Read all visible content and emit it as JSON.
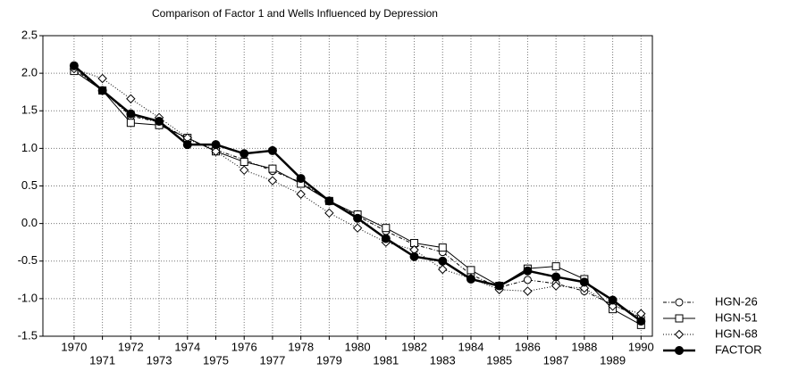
{
  "chart_data": {
    "type": "line",
    "title": "Comparison of Factor 1 and Wells Influenced by Depression",
    "x": [
      1970,
      1971,
      1972,
      1973,
      1974,
      1975,
      1976,
      1977,
      1978,
      1979,
      1980,
      1981,
      1982,
      1983,
      1984,
      1985,
      1986,
      1987,
      1988,
      1989,
      1990
    ],
    "series": [
      {
        "name": "HGN-26",
        "color": "#000000",
        "marker": "circle",
        "line": "dashdot",
        "values": [
          2.06,
          1.77,
          1.43,
          1.35,
          1.12,
          0.98,
          0.85,
          0.7,
          0.55,
          0.3,
          0.1,
          -0.1,
          -0.28,
          -0.38,
          -0.68,
          -0.85,
          -0.75,
          -0.8,
          -0.9,
          -1.08,
          -1.25
        ]
      },
      {
        "name": "HGN-51",
        "color": "#000000",
        "marker": "square",
        "line": "solid",
        "values": [
          2.03,
          1.77,
          1.34,
          1.31,
          1.14,
          0.96,
          0.82,
          0.73,
          0.53,
          0.3,
          0.12,
          -0.06,
          -0.26,
          -0.32,
          -0.62,
          -0.83,
          -0.6,
          -0.57,
          -0.74,
          -1.14,
          -1.35
        ]
      },
      {
        "name": "HGN-68",
        "color": "#000000",
        "marker": "diamond",
        "line": "dotted",
        "values": [
          2.06,
          1.93,
          1.66,
          1.41,
          1.14,
          0.96,
          0.71,
          0.57,
          0.39,
          0.14,
          -0.06,
          -0.25,
          -0.35,
          -0.61,
          -0.73,
          -0.88,
          -0.9,
          -0.83,
          -0.86,
          -1.1,
          -1.2
        ]
      },
      {
        "name": "FACTOR",
        "color": "#000000",
        "marker": "filled-circle",
        "line": "bold",
        "values": [
          2.1,
          1.77,
          1.46,
          1.36,
          1.05,
          1.05,
          0.93,
          0.97,
          0.6,
          0.3,
          0.07,
          -0.2,
          -0.44,
          -0.5,
          -0.74,
          -0.83,
          -0.63,
          -0.71,
          -0.78,
          -1.02,
          -1.3
        ]
      }
    ],
    "xlim": [
      1968.9,
      1990.4
    ],
    "xticks": [
      1970,
      1971,
      1972,
      1973,
      1974,
      1975,
      1976,
      1977,
      1978,
      1979,
      1980,
      1981,
      1982,
      1983,
      1984,
      1985,
      1986,
      1987,
      1988,
      1989,
      1990
    ],
    "ylim": [
      -1.5,
      2.5
    ],
    "yticks": [
      {
        "value": 2.5,
        "label": "2.5"
      },
      {
        "value": 2,
        "label": "2.0"
      },
      {
        "value": 1.5,
        "label": "1.5"
      },
      {
        "value": 1,
        "label": "1.0"
      },
      {
        "value": 0.5,
        "label": "0.5"
      },
      {
        "value": 0,
        "label": "0.0"
      },
      {
        "value": -0.5,
        "label": "-0.5"
      },
      {
        "value": -1,
        "label": "-1.0"
      },
      {
        "value": -1.5,
        "label": "-1.5"
      }
    ],
    "grid": true,
    "legend": "bottom-right-outside"
  }
}
